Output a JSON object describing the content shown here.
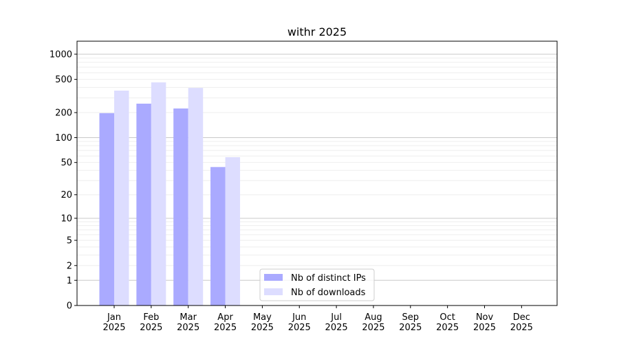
{
  "chart_data": {
    "type": "bar",
    "title": "withr 2025",
    "xlabel": "",
    "ylabel": "",
    "yscale": "log(1+y)",
    "ylim": [
      0,
      1300
    ],
    "yticks": [
      0,
      1,
      2,
      5,
      10,
      20,
      50,
      100,
      200,
      500,
      1000
    ],
    "grid": true,
    "legend_position": "bottom-center",
    "categories": [
      "Jan\n2025",
      "Feb\n2025",
      "Mar\n2025",
      "Apr\n2025",
      "May\n2025",
      "Jun\n2025",
      "Jul\n2025",
      "Aug\n2025",
      "Sep\n2025",
      "Oct\n2025",
      "Nov\n2025",
      "Dec\n2025"
    ],
    "series": [
      {
        "name": "Nb of distinct IPs",
        "color": "#aaaaff",
        "values": [
          197,
          256,
          224,
          44,
          null,
          null,
          null,
          null,
          null,
          null,
          null,
          null
        ]
      },
      {
        "name": "Nb of downloads",
        "color": "#ddddff",
        "values": [
          367,
          460,
          395,
          58,
          null,
          null,
          null,
          null,
          null,
          null,
          null,
          null
        ]
      }
    ]
  }
}
